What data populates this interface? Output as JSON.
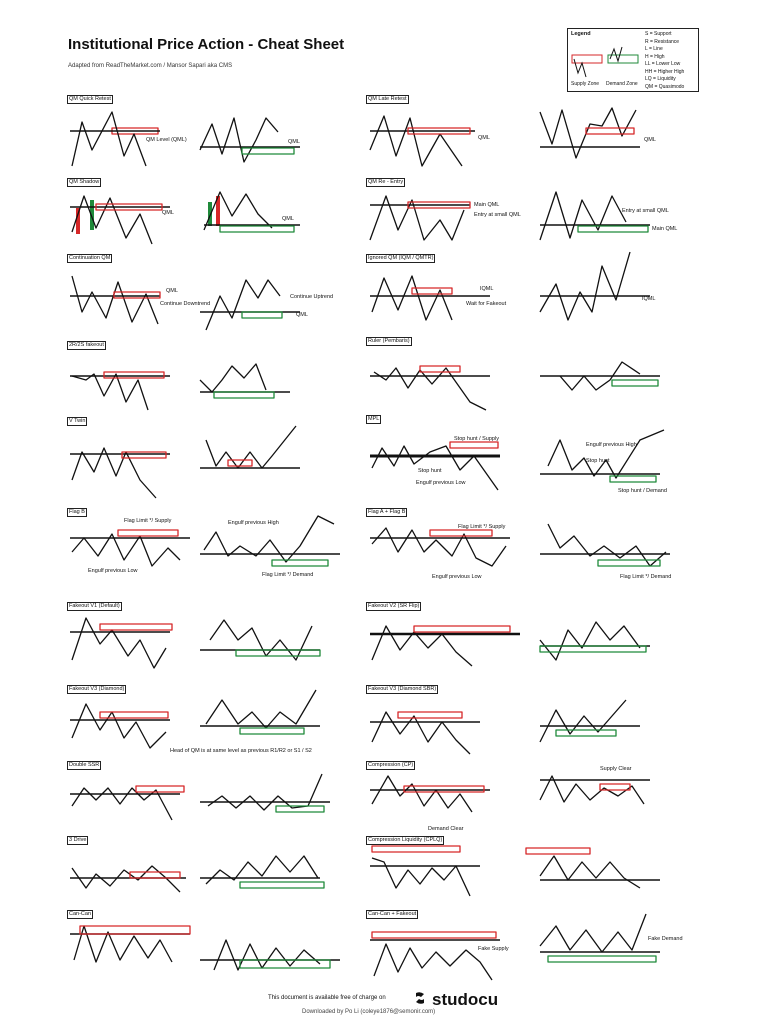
{
  "title": "Institutional Price Action - Cheat Sheet",
  "subtitle": "Adapted from ReadTheMarket.com / Mansor Sapari aka CMS",
  "legend": {
    "title": "Legend",
    "definitions": [
      "S = Support",
      "R = Resistance",
      "L = Line",
      "H = High",
      "LL = Lower Low",
      "HH = Higher High",
      "LQ = Liquidity",
      "QM = Quasimodo"
    ],
    "supply_label": "Supply Zone",
    "demand_label": "Demand Zone",
    "colors": {
      "supply": "#d62728",
      "demand": "#1f8a3a"
    }
  },
  "sections_left": [
    "QM Quick Retest",
    "QM Shadow",
    "Continuation QM",
    "2R/2S fakeout",
    "V Twin",
    "Flag B",
    "Fakeout V1 (Default)",
    "Fakeout V3 (Diamond)",
    "Double SSR",
    "3 Drive",
    "Can-Can"
  ],
  "sections_right": [
    "QM Late Retest",
    "QM Re - Entry",
    "Ignored QM (IQM / QMTR)",
    "Ruler (Pembaris)",
    "MPL",
    "Flag A + Flag B",
    "Fakeout V2 (SR Flip)",
    "Fakeout V3 (Diamond SBR)",
    "Compression (CP)",
    "Compression Liquidity (CPLQ)",
    "Can-Can + Fakeout"
  ],
  "annotations": {
    "qml": "QML",
    "qm_level": "QM Level (QML)",
    "main_qml": "Main QML",
    "entry_small": "Entry at small QML",
    "iqml": "IQML",
    "wait_fakeout": "Wait for Fakeout",
    "continue_down": "Continue Downtrend",
    "continue_up": "Continue Uptrend",
    "stop_hunt_supply": "Stop hunt / Supply",
    "stop_hunt_demand": "Stop hunt / Demand",
    "stop_hunt": "Stop hunt",
    "engulf_low": "Engulf previous Low",
    "engulf_high": "Engulf previous High",
    "flag_limit_supply": "Flag Limit */ Supply",
    "flag_limit_demand": "Flag Limit */ Demand",
    "head_note": "Head of QM is at same level as previous R1/R2 or S1 / S2",
    "supply_clear": "Supply Clear",
    "demand_clear": "Demand Clear",
    "fake_supply": "Fake Supply",
    "fake_demand": "Fake Demand"
  },
  "footer": {
    "note": "This document is available free of charge on",
    "brand": "studocu",
    "downloaded": "Downloaded by Po Li (coleye1876@semonir.com)"
  }
}
